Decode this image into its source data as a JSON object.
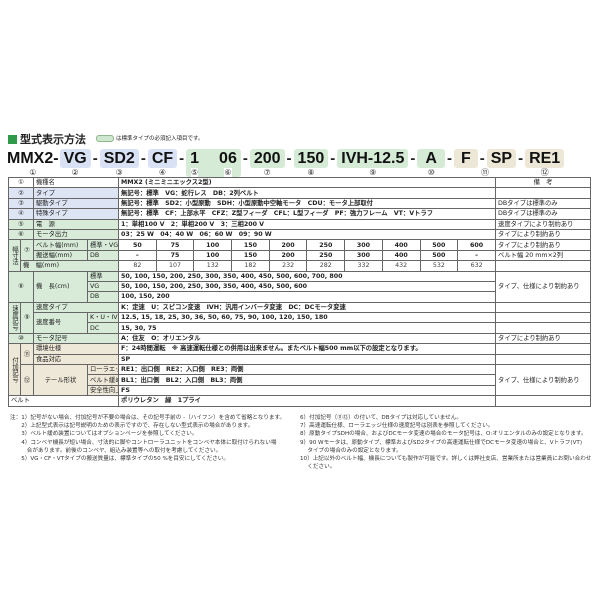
{
  "title": "型式表示方法",
  "legend_note": "は標準タイプの必須記入項目です。",
  "colors": {
    "standard_type": "#dde4f4",
    "required": "#d7ebd8",
    "option": "#ede8d8",
    "title_mark": "#2e9a4a"
  },
  "code": {
    "model": "MMX2-",
    "type": "VG",
    "drive": "SD2",
    "special": "CF",
    "power": "1",
    "motor": "06",
    "width": "200",
    "length": "150",
    "speed": "IVH-12.5",
    "motor_maker": "A",
    "env": "F",
    "food": "SP",
    "tail": "RE1",
    "dash": "-",
    "numbers": [
      "①",
      "②",
      "③",
      "④",
      "⑤",
      "⑥",
      "⑦",
      "⑧",
      "⑨",
      "⑩",
      "⑪",
      "⑫"
    ]
  },
  "table": {
    "remarks_header": "備　考",
    "r1": {
      "num": "①",
      "label": "機種名",
      "value": "MMX2 (ミニミニエックス2型)"
    },
    "r2": {
      "num": "②",
      "label": "タイプ",
      "value": "無記号：標準　VG：蛇行レス　DB：2列ベルト",
      "remark": ""
    },
    "r3": {
      "num": "③",
      "label": "駆動タイプ",
      "value": "無記号：標準　SD2：小型原動　SDH：小型原動中空軸モータ　CDU：モータ上部取付",
      "remark": "DBタイプは標準のみ"
    },
    "r4": {
      "num": "④",
      "label": "特殊タイプ",
      "value": "無記号：標準　CF：上部水平　CFZ：Z型フィーダ　CFL：L型フィーダ　PF：強力フレーム　VT：Vトラフ",
      "remark": "DBタイプは標準のみ"
    },
    "r5": {
      "num": "⑤",
      "label": "電　源",
      "value": "1：単相100 V　2：単相200 V　3：三相200 V",
      "remark": "速度タイプにより制約あり"
    },
    "r6": {
      "num": "⑥",
      "label": "モータ出力",
      "value": "03：25 W　04：40 W　06：60 W　09：90 W",
      "remark": "タイプにより制約あり"
    },
    "width": {
      "group": "幅寸法",
      "num": "⑦",
      "belt_label": "ベルト幅(mm)",
      "belt_sub": "標準・VG",
      "belt_values": [
        "50",
        "75",
        "100",
        "150",
        "200",
        "250",
        "300",
        "400",
        "500",
        "600"
      ],
      "belt_remark": "タイプにより制約あり",
      "conv_label": "搬送幅(mm)",
      "conv_sub": "DB",
      "conv_values": [
        "–",
        "75",
        "100",
        "150",
        "200",
        "250",
        "300",
        "400",
        "500",
        "–"
      ],
      "conv_remark": "ベルト幅 20 mm×2列",
      "machine_label": "機　幅(mm)",
      "machine_values": [
        "82",
        "107",
        "132",
        "182",
        "232",
        "282",
        "332",
        "432",
        "532",
        "632"
      ]
    },
    "length": {
      "num": "⑧",
      "label": "機　長(cm)",
      "rows": [
        {
          "sub": "標準",
          "value": "50, 100, 150, 200, 250, 300, 350, 400, 450, 500, 600, 700, 800"
        },
        {
          "sub": "VG",
          "value": "50, 100, 150, 200, 250, 300, 350, 400, 450, 500, 600"
        },
        {
          "sub": "DB",
          "value": "100, 150, 200"
        }
      ],
      "remark": "タイプ、仕様により制約あり"
    },
    "speed": {
      "group": "速度記号",
      "num": "⑨",
      "type_label": "速度タイプ",
      "type_value": "K：定速　U：スピコン変速　IVH：汎用インバータ変速　DC：DCモータ変速",
      "number_label": "速度番号",
      "kuivh_sub": "K・U・IVH",
      "kuivh_value": "12.5, 15, 18, 25, 30, 36, 50, 60, 75, 90, 100, 120, 150, 180",
      "dc_sub": "DC",
      "dc_value": "15, 30, 75"
    },
    "motor": {
      "num": "⑩",
      "label": "モータ記号",
      "value": "A：住友　O：オリエンタル",
      "remark": "タイプにより制約あり"
    },
    "option": {
      "group": "付加記号",
      "num11": "⑪",
      "env_label": "環境仕様",
      "env_value": "F：24時間運転　※ 高速運転仕様との併用は出来ません。またベルト幅500 mm以下の設定となります。",
      "food_label": "食品対応",
      "food_value": "SP",
      "num12": "⑫",
      "tail_label": "テール形状",
      "roller_label": "ローラエッジ",
      "roller_value": "RE1：出口側　RE2：入口側　RE3：両側",
      "loosen_label": "ベルト緩め装置",
      "loosen_value": "BL1：出口側　BL2：入口側　BL3：両側",
      "safety_label": "安全性向上",
      "safety_value": "FS",
      "remark": "タイプ、仕様により制約あり"
    },
    "belt": {
      "label": "ベルト",
      "value": "ポリウレタン　緑　1プライ"
    }
  },
  "notes_left": [
    "注：1）記号がない場合、付加記号が不要の場合は、その記号手前の -（ハイフン）を含めて省略となります。",
    "　　2）上記型式表示は記号説明のための表示ですので、存在しない型式表示の場合があります。",
    "　　3）ベルト緩め装置についてはオプションページを参照してください。",
    "　　4）コンベヤ機長が短い場合、寸法的に脚やコントローラユニットをコンベヤ本体に取付けられない場",
    "　　　合があります。前後のコンベヤ、組込み装置等への取付を考慮してください。",
    "　　5）VG・CF・VTタイプの搬送質量は、標準タイプの50 %を目安にしてください。"
  ],
  "notes_right": [
    "6）付加記号（⑪⑫）の付いて、DBタイプは対応していません。",
    "7）高速運転仕様、ローラエッジ仕様の速度記号は別表を参照してください。",
    "8）原動タイプSDHの場合、およびDCモータ変速の場合のモータ記号は、O:オリエンタルのみの設定となります。",
    "9）90 Wモータは、原動タイプ、標準およびSD2タイプの高速運転仕様でDCモータ変速の場合と、Vトラフ(VT)",
    "　 タイプの場合のみの設定となります。",
    "10）上記以外のベルト幅、機長についても製作が可能です。詳しくは弊社支店、営業所または営業員にお問い合わせ",
    "　 ください。"
  ]
}
